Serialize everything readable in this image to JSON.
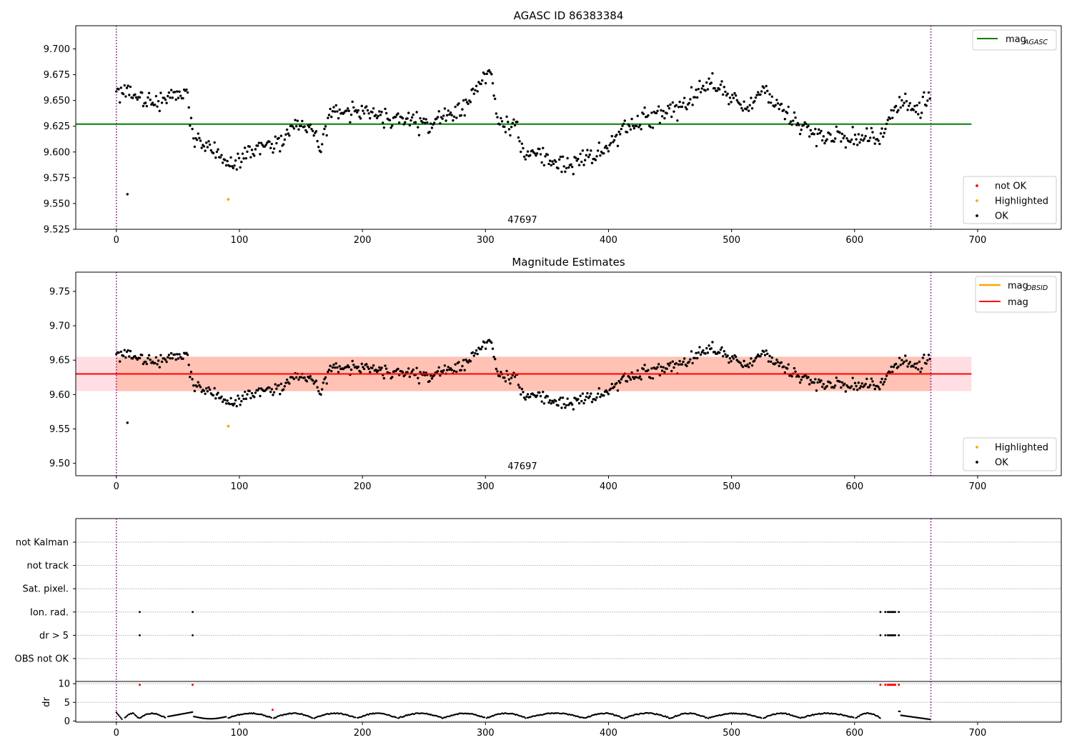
{
  "chart_data": [
    {
      "panel": "top",
      "type": "scatter",
      "title": "AGASC ID 86383384",
      "xlim": [
        -33,
        768
      ],
      "ylim": [
        9.525,
        9.7225
      ],
      "xticks": [
        0,
        100,
        200,
        300,
        400,
        500,
        600,
        700
      ],
      "yticks": [
        9.525,
        9.55,
        9.575,
        9.6,
        9.625,
        9.65,
        9.675,
        9.7
      ],
      "ytick_labels": [
        "9.525",
        "9.550",
        "9.575",
        "9.600",
        "9.625",
        "9.650",
        "9.675",
        "9.700"
      ],
      "obsid_label": "47697",
      "obsid_x": 330,
      "vlines": [
        0,
        662
      ],
      "hlines": [
        {
          "name": "mag_AGASC",
          "y": 9.627,
          "x": [
            -33,
            695
          ],
          "color": "#008000"
        }
      ],
      "series": [
        {
          "name": "not OK",
          "color": "#ff0000",
          "points": []
        },
        {
          "name": "Highlighted",
          "color": "#ffa500",
          "points": [
            [
              91,
              9.554
            ]
          ]
        },
        {
          "name": "OK",
          "color": "#000000",
          "model": "noisy-walk"
        }
      ],
      "legend_line": {
        "label_main": "mag",
        "label_sub": "AGASC",
        "color": "#008000"
      },
      "legend_markers": [
        "not OK",
        "Highlighted",
        "OK"
      ],
      "legend_marker_colors": [
        "#ff0000",
        "#ffa500",
        "#000000"
      ]
    },
    {
      "panel": "middle",
      "type": "scatter",
      "title": "Magnitude Estimates",
      "xlim": [
        -33,
        768
      ],
      "ylim": [
        9.482,
        9.778
      ],
      "xticks": [
        0,
        100,
        200,
        300,
        400,
        500,
        600,
        700
      ],
      "yticks": [
        9.5,
        9.55,
        9.6,
        9.65,
        9.7,
        9.75
      ],
      "ytick_labels": [
        "9.50",
        "9.55",
        "9.60",
        "9.65",
        "9.70",
        "9.75"
      ],
      "obsid_label": "47697",
      "obsid_x": 330,
      "vlines": [
        0,
        662
      ],
      "hlines": [
        {
          "name": "mag",
          "y": 9.63,
          "x": [
            -33,
            695
          ],
          "color": "#ff0000"
        }
      ],
      "bands": [
        {
          "name": "mag band",
          "y": [
            9.605,
            9.655
          ],
          "x": [
            -33,
            695
          ],
          "color": "#ffb6c1",
          "opacity": 0.45
        },
        {
          "name": "mag_OBSID band",
          "y": [
            9.605,
            9.655
          ],
          "x": [
            0,
            662
          ],
          "color": "#ffa07a",
          "opacity": 0.45
        }
      ],
      "series": [
        {
          "name": "Highlighted",
          "color": "#ffa500",
          "points": [
            [
              91,
              9.554
            ]
          ]
        },
        {
          "name": "OK",
          "color": "#000000",
          "model": "noisy-walk"
        }
      ],
      "legend_line_1": {
        "label_main": "mag",
        "label_sub": "OBSID",
        "color": "#ffa500"
      },
      "legend_line_2": {
        "label": "mag",
        "color": "#ff0000"
      },
      "legend_markers": [
        "Highlighted",
        "OK"
      ],
      "legend_marker_colors": [
        "#ffa500",
        "#000000"
      ]
    },
    {
      "panel": "flags",
      "type": "scatter",
      "xlim": [
        -33,
        768
      ],
      "categories": [
        "not Kalman",
        "not track",
        "Sat. pixel.",
        "Ion. rad.",
        "dr > 5",
        "OBS not OK"
      ],
      "vlines": [
        0,
        662
      ],
      "flag_points": {
        "Ion. rad.": [
          19,
          62,
          621,
          625,
          627,
          628,
          629,
          630,
          631,
          632,
          633,
          636
        ],
        "dr > 5": [
          19,
          62,
          621,
          625,
          627,
          628,
          629,
          630,
          631,
          632,
          633,
          636
        ]
      }
    },
    {
      "panel": "dr",
      "type": "scatter",
      "ylabel": "dr",
      "xlim": [
        -33,
        768
      ],
      "ylim": [
        -0.3,
        10.6
      ],
      "xticks": [
        0,
        100,
        200,
        300,
        400,
        500,
        600,
        700
      ],
      "yticks": [
        0,
        5,
        10
      ],
      "ytick_labels": [
        "0",
        "5",
        "10"
      ],
      "vlines": [
        0,
        662
      ],
      "red_points": [
        [
          19,
          9.7
        ],
        [
          62,
          9.7
        ],
        [
          127,
          3.0
        ],
        [
          621,
          9.7
        ],
        [
          625,
          9.7
        ],
        [
          627,
          9.7
        ],
        [
          628,
          9.7
        ],
        [
          629,
          9.7
        ],
        [
          630,
          9.7
        ],
        [
          631,
          9.7
        ],
        [
          632,
          9.7
        ],
        [
          633,
          9.7
        ],
        [
          636,
          9.7
        ]
      ],
      "series": [
        {
          "color": "#000000",
          "model": "smooth-arcs"
        }
      ]
    }
  ]
}
